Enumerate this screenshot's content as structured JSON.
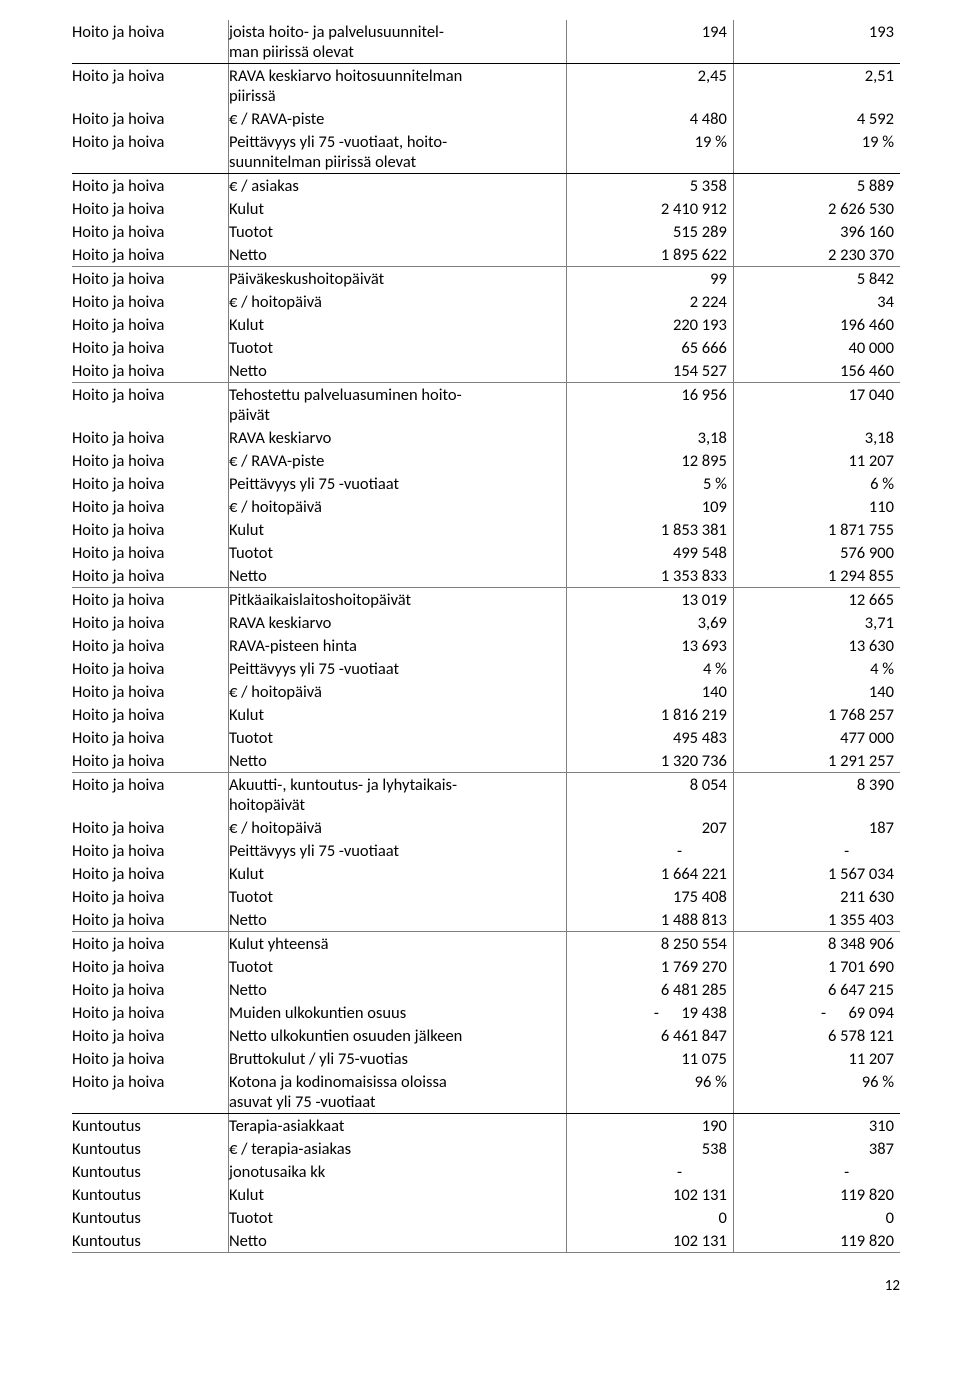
{
  "page_number": "12",
  "colors": {
    "border": "#7f7f7f",
    "border_thick": "#000000",
    "text": "#000000",
    "bg": "#ffffff"
  },
  "rows": [
    {
      "c1": "Hoito ja hoiva",
      "c2": "joista hoito- ja palvelusuunnitel-\nman piirissä olevat",
      "c3": "194",
      "c4": "193",
      "sep": "thick"
    },
    {
      "c1": "Hoito ja hoiva",
      "c2": "RAVA keskiarvo hoitosuunnitelman\npiirissä",
      "c3": "2,45",
      "c4": "2,51"
    },
    {
      "c1": "Hoito ja hoiva",
      "c2": "€ / RAVA-piste",
      "c3": "4 480",
      "c4": "4 592"
    },
    {
      "c1": "Hoito ja hoiva",
      "c2": "Peittävyys yli 75 -vuotiaat, hoito-\nsuunnitelman piirissä olevat",
      "c3": "19 %",
      "c4": "19 %",
      "sep": "thick"
    },
    {
      "c1": "Hoito ja hoiva",
      "c2": "€ / asiakas",
      "c3": "5 358",
      "c4": "5 889"
    },
    {
      "c1": "Hoito ja hoiva",
      "c2": "Kulut",
      "c3": "2 410 912",
      "c4": "2 626 530"
    },
    {
      "c1": "Hoito ja hoiva",
      "c2": "Tuotot",
      "c3": "515 289",
      "c4": "396 160"
    },
    {
      "c1": "Hoito ja hoiva",
      "c2": "Netto",
      "c3": "1 895 622",
      "c4": "2 230 370",
      "sep": "thin"
    },
    {
      "c1": "Hoito ja hoiva",
      "c2": "Päiväkeskushoitopäivät",
      "c3": "99",
      "c4": "5 842"
    },
    {
      "c1": "Hoito ja hoiva",
      "c2": "€ / hoitopäivä",
      "c3": "2 224",
      "c4": "34"
    },
    {
      "c1": "Hoito ja hoiva",
      "c2": "Kulut",
      "c3": "220 193",
      "c4": "196 460"
    },
    {
      "c1": "Hoito ja hoiva",
      "c2": "Tuotot",
      "c3": "65 666",
      "c4": "40 000"
    },
    {
      "c1": "Hoito ja hoiva",
      "c2": "Netto",
      "c3": "154 527",
      "c4": "156 460",
      "sep": "thin"
    },
    {
      "c1": "Hoito ja hoiva",
      "c2": "Tehostettu palveluasuminen hoito-\npäivät",
      "c3": "16 956",
      "c4": "17 040"
    },
    {
      "c1": "Hoito ja hoiva",
      "c2": "RAVA keskiarvo",
      "c3": "3,18",
      "c4": "3,18"
    },
    {
      "c1": "Hoito ja hoiva",
      "c2": "€ / RAVA-piste",
      "c3": "12 895",
      "c4": "11 207"
    },
    {
      "c1": "Hoito ja hoiva",
      "c2": "Peittävyys yli 75 -vuotiaat",
      "c3": "5 %",
      "c4": "6 %"
    },
    {
      "c1": "Hoito ja hoiva",
      "c2": "€ / hoitopäivä",
      "c3": "109",
      "c4": "110"
    },
    {
      "c1": "Hoito ja hoiva",
      "c2": "Kulut",
      "c3": "1 853 381",
      "c4": "1 871 755"
    },
    {
      "c1": "Hoito ja hoiva",
      "c2": "Tuotot",
      "c3": "499 548",
      "c4": "576 900"
    },
    {
      "c1": "Hoito ja hoiva",
      "c2": "Netto",
      "c3": "1 353 833",
      "c4": "1 294 855",
      "sep": "thin"
    },
    {
      "c1": "Hoito ja hoiva",
      "c2": "Pitkäaikaislaitoshoitopäivät",
      "c3": "13 019",
      "c4": "12 665"
    },
    {
      "c1": "Hoito ja hoiva",
      "c2": "RAVA keskiarvo",
      "c3": "3,69",
      "c4": "3,71"
    },
    {
      "c1": "Hoito ja hoiva",
      "c2": "RAVA-pisteen hinta",
      "c3": "13 693",
      "c4": "13 630"
    },
    {
      "c1": "Hoito ja hoiva",
      "c2": "Peittävyys yli 75 -vuotiaat",
      "c3": "4 %",
      "c4": "4 %"
    },
    {
      "c1": "Hoito ja hoiva",
      "c2": "€ / hoitopäivä",
      "c3": "140",
      "c4": "140"
    },
    {
      "c1": "Hoito ja hoiva",
      "c2": "Kulut",
      "c3": "1 816 219",
      "c4": "1 768 257"
    },
    {
      "c1": "Hoito ja hoiva",
      "c2": "Tuotot",
      "c3": "495 483",
      "c4": "477 000"
    },
    {
      "c1": "Hoito ja hoiva",
      "c2": "Netto",
      "c3": "1 320 736",
      "c4": "1 291 257",
      "sep": "thin"
    },
    {
      "c1": "Hoito ja hoiva",
      "c2": "Akuutti-, kuntoutus- ja lyhytaikais-\nhoitopäivät",
      "c3": "8 054",
      "c4": "8 390"
    },
    {
      "c1": "Hoito ja hoiva",
      "c2": "€ / hoitopäivä",
      "c3": "207",
      "c4": "187"
    },
    {
      "c1": "Hoito ja hoiva",
      "c2": "Peittävyys yli 75 -vuotiaat",
      "c3": " -            ",
      "c4": " -            "
    },
    {
      "c1": "Hoito ja hoiva",
      "c2": "Kulut",
      "c3": "1 664 221",
      "c4": "1 567 034"
    },
    {
      "c1": "Hoito ja hoiva",
      "c2": "Tuotot",
      "c3": "175 408",
      "c4": "211 630"
    },
    {
      "c1": "Hoito ja hoiva",
      "c2": "Netto",
      "c3": "1 488 813",
      "c4": "1 355 403",
      "sep": "thin"
    },
    {
      "c1": "Hoito ja hoiva",
      "c2": "Kulut yhteensä",
      "c3": "8 250 554",
      "c4": "8 348 906"
    },
    {
      "c1": "Hoito ja hoiva",
      "c2": "Tuotot",
      "c3": "1 769 270",
      "c4": "1 701 690"
    },
    {
      "c1": "Hoito ja hoiva",
      "c2": "Netto",
      "c3": "6 481 285",
      "c4": "6 647 215"
    },
    {
      "c1": "Hoito ja hoiva",
      "c2": "Muiden ulkokuntien osuus",
      "c3": "-      19 438",
      "c4": "-      69 094"
    },
    {
      "c1": "Hoito ja hoiva",
      "c2": "Netto ulkokuntien osuuden jälkeen",
      "c3": "6 461 847",
      "c4": "6 578 121"
    },
    {
      "c1": "Hoito ja hoiva",
      "c2": "Bruttokulut / yli 75-vuotias",
      "c3": "11 075",
      "c4": "11 207"
    },
    {
      "c1": "Hoito ja hoiva",
      "c2": "Kotona ja kodinomaisissa oloissa\nasuvat yli 75 -vuotiaat",
      "c3": "96 %",
      "c4": "96 %",
      "sep": "thick"
    },
    {
      "c1": "Kuntoutus",
      "c2": "Terapia-asiakkaat",
      "c3": "190",
      "c4": "310"
    },
    {
      "c1": "Kuntoutus",
      "c2": "€ / terapia-asiakas",
      "c3": "538",
      "c4": "387"
    },
    {
      "c1": "Kuntoutus",
      "c2": "jonotusaika kk",
      "c3": " -            ",
      "c4": " -            "
    },
    {
      "c1": "Kuntoutus",
      "c2": "Kulut",
      "c3": "102 131",
      "c4": "119 820"
    },
    {
      "c1": "Kuntoutus",
      "c2": "Tuotot",
      "c3": "0",
      "c4": "0"
    },
    {
      "c1": "Kuntoutus",
      "c2": "Netto",
      "c3": "102 131",
      "c4": "119 820",
      "sep": "thin"
    }
  ]
}
